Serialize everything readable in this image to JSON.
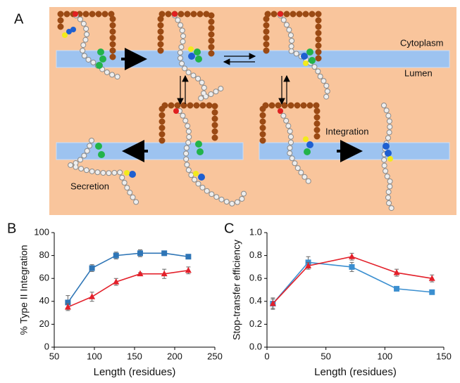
{
  "diagram": {
    "label": "A",
    "cytoplasm": "Cytoplasm",
    "lumen": "Lumen",
    "integration": "Integration",
    "secretion": "Secretion"
  },
  "chart_data": [
    {
      "type": "line",
      "panel": "B",
      "xlabel": "Length (residues)",
      "ylabel": "% Type II Integration",
      "x": [
        67,
        97,
        127,
        157,
        187,
        217
      ],
      "xlim": [
        50,
        250
      ],
      "xticks": [
        50,
        100,
        150,
        200,
        250
      ],
      "ylim": [
        0,
        100
      ],
      "yticks": [
        0,
        20,
        40,
        60,
        80,
        100
      ],
      "series": [
        {
          "color": "#2e75b6",
          "marker": "square",
          "values": [
            39,
            69,
            80,
            82,
            82,
            79
          ],
          "errors": [
            6,
            3,
            3,
            3,
            2,
            2
          ]
        },
        {
          "color": "#e3202a",
          "marker": "triangle",
          "values": [
            35,
            44,
            57,
            64,
            64,
            67
          ],
          "errors": [
            3,
            4,
            3,
            1,
            4,
            3
          ]
        }
      ]
    },
    {
      "type": "line",
      "panel": "C",
      "xlabel": "Length (residues)",
      "ylabel": "Stop-transfer efficiency",
      "x": [
        5,
        35,
        72,
        110,
        140
      ],
      "xlim": [
        0,
        150
      ],
      "xticks": [
        0,
        50,
        100,
        150
      ],
      "ylim": [
        0,
        1
      ],
      "yticks": [
        {
          "value": 0,
          "label": "0.0"
        },
        0.2,
        0.4,
        0.6,
        0.8,
        {
          "value": 1,
          "label": "1.0"
        }
      ],
      "series": [
        {
          "color": "#3b8fd0",
          "marker": "square",
          "values": [
            0.38,
            0.74,
            0.7,
            0.51,
            0.48
          ],
          "errors": [
            0.05,
            0.05,
            0.04,
            0.02,
            0.02
          ]
        },
        {
          "color": "#e3202a",
          "marker": "triangle",
          "values": [
            0.38,
            0.71,
            0.79,
            0.65,
            0.6
          ],
          "errors": [
            0.04,
            0.03,
            0.03,
            0.03,
            0.03
          ]
        }
      ]
    }
  ]
}
